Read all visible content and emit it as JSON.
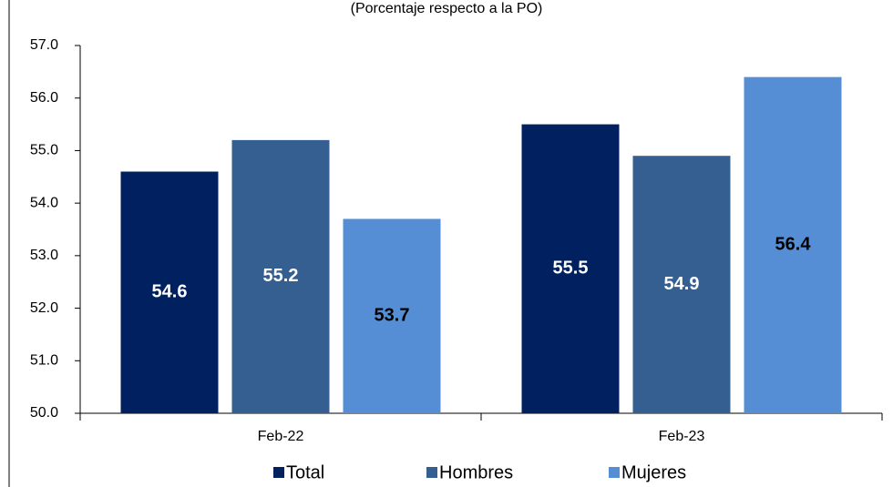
{
  "chart_data": {
    "type": "bar",
    "subtitle": "(Porcentaje respecto a la PO)",
    "categories": [
      "Feb-22",
      "Feb-23"
    ],
    "series": [
      {
        "name": "Total",
        "color": "#002060",
        "label_color": "#ffffff",
        "values": [
          54.6,
          55.5
        ]
      },
      {
        "name": "Hombres",
        "color": "#355f91",
        "label_color": "#ffffff",
        "values": [
          55.2,
          54.9
        ]
      },
      {
        "name": "Mujeres",
        "color": "#558ed5",
        "label_color": "#000000",
        "values": [
          53.7,
          56.4
        ]
      }
    ],
    "ylim": [
      50,
      57
    ],
    "yticks": [
      {
        "value": 50,
        "label": "50.0"
      },
      {
        "value": 51,
        "label": "51.0"
      },
      {
        "value": 52,
        "label": "52.0"
      },
      {
        "value": 53,
        "label": "53.0"
      },
      {
        "value": 54,
        "label": "54.0"
      },
      {
        "value": 55,
        "label": "55.0"
      },
      {
        "value": 56,
        "label": "56.0"
      },
      {
        "value": 57,
        "label": "57.0"
      }
    ],
    "grid": false,
    "legend": "bottom"
  }
}
